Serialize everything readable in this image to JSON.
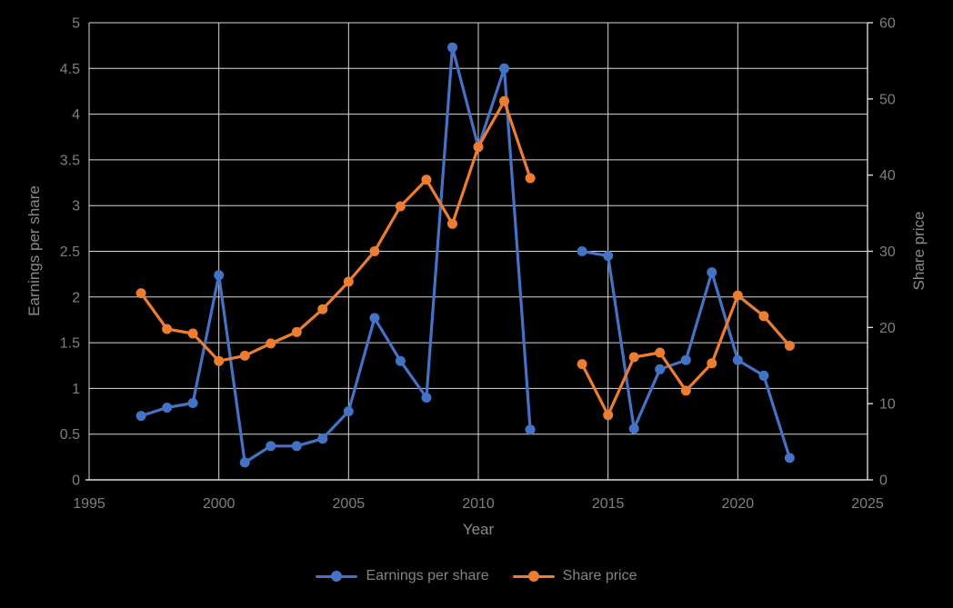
{
  "chart_data": {
    "type": "line",
    "title": "",
    "xlabel": "Year",
    "ylabel_left": "Earnings per share",
    "ylabel_right": "Share price",
    "x_range": [
      1995,
      2025
    ],
    "x_ticks": [
      1995,
      2000,
      2005,
      2010,
      2015,
      2020,
      2025
    ],
    "y_left_range": [
      0,
      5
    ],
    "y_left_ticks": [
      0,
      0.5,
      1,
      1.5,
      2,
      2.5,
      3,
      3.5,
      4,
      4.5,
      5
    ],
    "y_right_range": [
      0,
      60
    ],
    "y_right_ticks": [
      0,
      10,
      20,
      30,
      40,
      50,
      60
    ],
    "grid": true,
    "legend_position": "bottom",
    "note": "no data for 2013 (gap in both series)",
    "x": [
      1997,
      1998,
      1999,
      2000,
      2001,
      2002,
      2003,
      2004,
      2005,
      2006,
      2007,
      2008,
      2009,
      2010,
      2011,
      2012,
      2013,
      2014,
      2015,
      2016,
      2017,
      2018,
      2019,
      2020,
      2021,
      2022
    ],
    "series": [
      {
        "name": "Earnings per share",
        "axis": "left",
        "color": "#4472C4",
        "values": [
          0.7,
          0.79,
          0.84,
          2.24,
          0.19,
          0.37,
          0.37,
          0.45,
          0.75,
          1.77,
          1.3,
          0.9,
          4.73,
          3.64,
          4.5,
          0.55,
          null,
          2.5,
          2.45,
          0.56,
          1.21,
          1.31,
          2.27,
          1.31,
          1.14,
          0.24
        ]
      },
      {
        "name": "Share price",
        "axis": "right",
        "color": "#ED7D31",
        "values": [
          24.5,
          19.8,
          19.2,
          15.6,
          16.3,
          17.9,
          19.4,
          22.4,
          26.0,
          30.0,
          35.9,
          39.4,
          33.6,
          43.7,
          49.7,
          39.6,
          null,
          15.2,
          8.5,
          16.1,
          16.7,
          11.7,
          15.3,
          24.2,
          21.5,
          17.6
        ]
      }
    ]
  },
  "colors": {
    "background": "#000000",
    "gridline": "#D9D9D9",
    "axis_line": "#D9D9D9",
    "axis_text": "#7F7F7F",
    "title_text": "#8A8A8A",
    "series_blue": "#4472C4",
    "series_orange": "#ED7D31"
  }
}
